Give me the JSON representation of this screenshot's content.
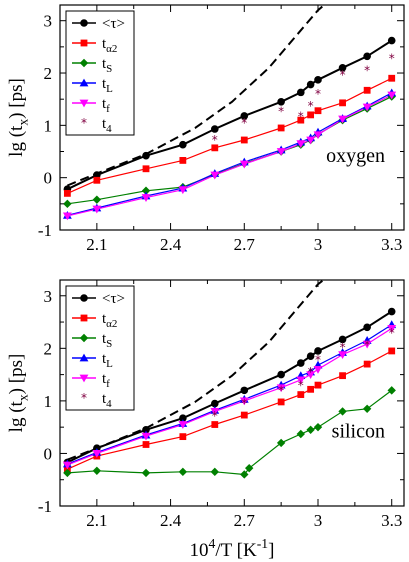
{
  "chart_data": [
    {
      "type": "line",
      "panel_label": "oxygen",
      "xlabel": "",
      "ylabel": "lg (t_x) [ps]",
      "xlim": [
        1.95,
        3.35
      ],
      "ylim": [
        -1,
        3.3
      ],
      "xticks": [
        2.1,
        2.4,
        2.7,
        3,
        3.3
      ],
      "xtick_labels": [
        "2.1",
        "2.4",
        "2.7",
        "3",
        "3.3"
      ],
      "yticks": [
        -1,
        0,
        1,
        2,
        3
      ],
      "ytick_labels": [
        "-1",
        "0",
        "1",
        "2",
        "3"
      ],
      "legend_position": "top-left",
      "dashed_curve": {
        "x": [
          1.98,
          2.1,
          2.3,
          2.5,
          2.65,
          2.8,
          2.9,
          3.0,
          3.05
        ],
        "y": [
          -0.15,
          0.08,
          0.45,
          0.95,
          1.45,
          2.1,
          2.65,
          3.2,
          3.4
        ]
      },
      "series": [
        {
          "name": "<τ>",
          "marker": "circle",
          "color": "#000000",
          "line": true,
          "x": [
            1.98,
            2.1,
            2.3,
            2.45,
            2.58,
            2.7,
            2.85,
            2.93,
            2.97,
            3.0,
            3.1,
            3.2,
            3.3
          ],
          "y": [
            -0.22,
            0.05,
            0.42,
            0.63,
            0.93,
            1.18,
            1.45,
            1.63,
            1.78,
            1.87,
            2.1,
            2.32,
            2.62
          ]
        },
        {
          "name": "α2",
          "marker": "square",
          "color": "#ff0000",
          "line": true,
          "x": [
            1.98,
            2.1,
            2.3,
            2.45,
            2.58,
            2.7,
            2.85,
            2.93,
            2.97,
            3.0,
            3.1,
            3.2,
            3.3
          ],
          "y": [
            -0.3,
            -0.05,
            0.17,
            0.33,
            0.57,
            0.72,
            0.95,
            1.1,
            1.2,
            1.28,
            1.43,
            1.67,
            1.9
          ]
        },
        {
          "name": "S",
          "marker": "diamond",
          "color": "#008000",
          "line": true,
          "x": [
            1.98,
            2.1,
            2.3,
            2.45,
            2.58,
            2.7,
            2.85,
            2.93,
            2.97,
            3.0,
            3.1,
            3.2,
            3.3
          ],
          "y": [
            -0.5,
            -0.42,
            -0.25,
            -0.18,
            0.06,
            0.27,
            0.5,
            0.63,
            0.72,
            0.83,
            1.1,
            1.32,
            1.55
          ]
        },
        {
          "name": "L",
          "marker": "triangle-up",
          "color": "#0000ff",
          "line": true,
          "x": [
            1.98,
            2.1,
            2.3,
            2.45,
            2.58,
            2.7,
            2.85,
            2.93,
            2.97,
            3.0,
            3.1,
            3.2,
            3.3
          ],
          "y": [
            -0.72,
            -0.58,
            -0.35,
            -0.2,
            0.08,
            0.3,
            0.53,
            0.68,
            0.76,
            0.87,
            1.13,
            1.37,
            1.62
          ]
        },
        {
          "name": "f",
          "marker": "triangle-down",
          "color": "#ff00ff",
          "line": true,
          "x": [
            1.98,
            2.1,
            2.3,
            2.45,
            2.58,
            2.7,
            2.85,
            2.93,
            2.97,
            3.0,
            3.1,
            3.2,
            3.3
          ],
          "y": [
            -0.73,
            -0.6,
            -0.38,
            -0.23,
            0.05,
            0.26,
            0.5,
            0.65,
            0.72,
            0.82,
            1.12,
            1.35,
            1.58
          ]
        },
        {
          "name": "4",
          "marker": "star",
          "color": "#800040",
          "line": false,
          "x": [
            2.58,
            2.7,
            2.85,
            2.93,
            2.97,
            3.0,
            3.1,
            3.2,
            3.3
          ],
          "y": [
            0.72,
            1.05,
            1.27,
            1.17,
            1.37,
            1.6,
            1.97,
            2.05,
            2.28
          ]
        }
      ]
    },
    {
      "type": "line",
      "panel_label": "silicon",
      "xlabel": "10^4/T [K^-1]",
      "ylabel": "lg (t_x) [ps]",
      "xlim": [
        1.95,
        3.35
      ],
      "ylim": [
        -1,
        3.3
      ],
      "xticks": [
        2.1,
        2.4,
        2.7,
        3,
        3.3
      ],
      "xtick_labels": [
        "2.1",
        "2.4",
        "2.7",
        "3",
        "3.3"
      ],
      "yticks": [
        -1,
        0,
        1,
        2,
        3
      ],
      "ytick_labels": [
        "-1",
        "0",
        "1",
        "2",
        "3"
      ],
      "legend_position": "top-left",
      "dashed_curve": {
        "x": [
          1.98,
          2.1,
          2.3,
          2.5,
          2.65,
          2.8,
          2.9,
          3.0,
          3.05
        ],
        "y": [
          -0.12,
          0.1,
          0.48,
          0.98,
          1.48,
          2.12,
          2.67,
          3.22,
          3.4
        ]
      },
      "series": [
        {
          "name": "<τ>",
          "marker": "circle",
          "color": "#000000",
          "line": true,
          "x": [
            1.98,
            2.1,
            2.3,
            2.45,
            2.58,
            2.7,
            2.85,
            2.93,
            2.97,
            3.0,
            3.1,
            3.2,
            3.3
          ],
          "y": [
            -0.17,
            0.1,
            0.45,
            0.67,
            0.95,
            1.2,
            1.5,
            1.72,
            1.85,
            1.95,
            2.17,
            2.4,
            2.7
          ]
        },
        {
          "name": "α2",
          "marker": "square",
          "color": "#ff0000",
          "line": true,
          "x": [
            1.98,
            2.1,
            2.3,
            2.45,
            2.58,
            2.7,
            2.85,
            2.93,
            2.97,
            3.0,
            3.1,
            3.2,
            3.3
          ],
          "y": [
            -0.3,
            -0.05,
            0.17,
            0.32,
            0.55,
            0.73,
            0.98,
            1.12,
            1.22,
            1.3,
            1.48,
            1.7,
            1.95
          ]
        },
        {
          "name": "S",
          "marker": "diamond",
          "color": "#008000",
          "line": true,
          "x": [
            1.98,
            2.1,
            2.3,
            2.45,
            2.58,
            2.7,
            2.72,
            2.85,
            2.93,
            2.97,
            3.0,
            3.1,
            3.2,
            3.3
          ],
          "y": [
            -0.37,
            -0.33,
            -0.37,
            -0.35,
            -0.35,
            -0.4,
            -0.28,
            0.2,
            0.37,
            0.45,
            0.5,
            0.8,
            0.85,
            1.2
          ]
        },
        {
          "name": "L",
          "marker": "triangle-up",
          "color": "#0000ff",
          "line": true,
          "x": [
            1.98,
            2.1,
            2.3,
            2.45,
            2.58,
            2.7,
            2.85,
            2.93,
            2.97,
            3.0,
            3.1,
            3.2,
            3.3
          ],
          "y": [
            -0.2,
            0.02,
            0.35,
            0.57,
            0.82,
            1.03,
            1.3,
            1.48,
            1.55,
            1.68,
            1.92,
            2.15,
            2.45
          ]
        },
        {
          "name": "f",
          "marker": "triangle-down",
          "color": "#ff00ff",
          "line": true,
          "x": [
            1.98,
            2.1,
            2.3,
            2.45,
            2.58,
            2.7,
            2.85,
            2.93,
            2.97,
            3.0,
            3.1,
            3.2,
            3.3
          ],
          "y": [
            -0.22,
            0.0,
            0.33,
            0.55,
            0.8,
            1.0,
            1.25,
            1.4,
            1.5,
            1.6,
            1.88,
            2.08,
            2.38
          ]
        },
        {
          "name": "4",
          "marker": "star",
          "color": "#800040",
          "line": false,
          "x": [
            2.58,
            2.7,
            2.85,
            2.93,
            2.97,
            3.0,
            3.1,
            3.2,
            3.3
          ],
          "y": [
            0.72,
            0.95,
            1.2,
            1.3,
            1.55,
            1.78,
            2.02,
            2.07,
            2.3
          ]
        }
      ]
    }
  ]
}
